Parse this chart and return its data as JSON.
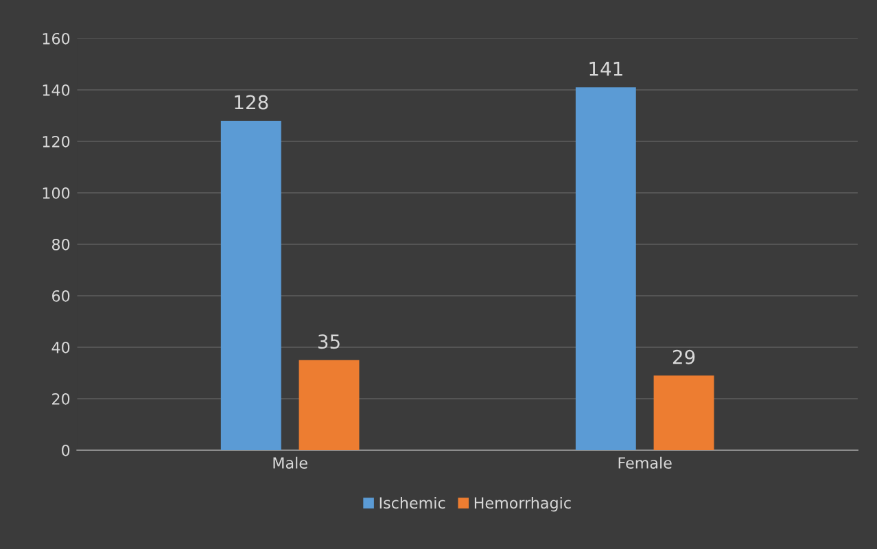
{
  "chart_data": {
    "type": "bar",
    "categories": [
      "Male",
      "Female"
    ],
    "series": [
      {
        "name": "Ischemic",
        "color": "#5b9bd5",
        "values": [
          128,
          141
        ]
      },
      {
        "name": "Hemorrhagic",
        "color": "#ed7d31",
        "values": [
          35,
          29
        ]
      }
    ],
    "ylim": [
      0,
      160
    ],
    "yticks": [
      0,
      20,
      40,
      60,
      80,
      100,
      120,
      140,
      160
    ],
    "grid": "y",
    "legend": "bottom",
    "data_labels": true
  }
}
